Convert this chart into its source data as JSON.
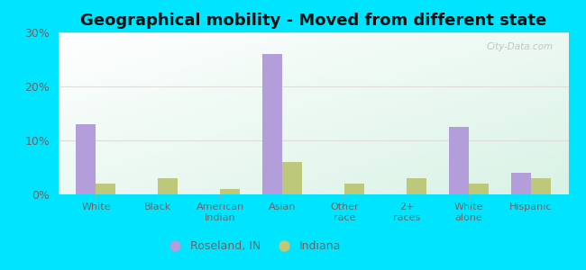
{
  "title": "Geographical mobility - Moved from different state",
  "categories": [
    "White",
    "Black",
    "American\nIndian",
    "Asian",
    "Other\nrace",
    "2+\nraces",
    "White\nalone",
    "Hispanic"
  ],
  "roseland_values": [
    13.0,
    0,
    0,
    26.0,
    0,
    0,
    12.5,
    4.0
  ],
  "indiana_values": [
    2.0,
    3.0,
    1.0,
    6.0,
    2.0,
    3.0,
    2.0,
    3.0
  ],
  "roseland_color": "#b39ddb",
  "indiana_color": "#bdc87a",
  "background_outer": "#00e5ff",
  "ylim": [
    0,
    30
  ],
  "yticks": [
    0,
    10,
    20,
    30
  ],
  "ytick_labels": [
    "0%",
    "10%",
    "20%",
    "30%"
  ],
  "legend_labels": [
    "Roseland, IN",
    "Indiana"
  ],
  "title_fontsize": 13,
  "bar_width": 0.32,
  "grid_color": "#dddddd",
  "watermark": "City-Data.com"
}
